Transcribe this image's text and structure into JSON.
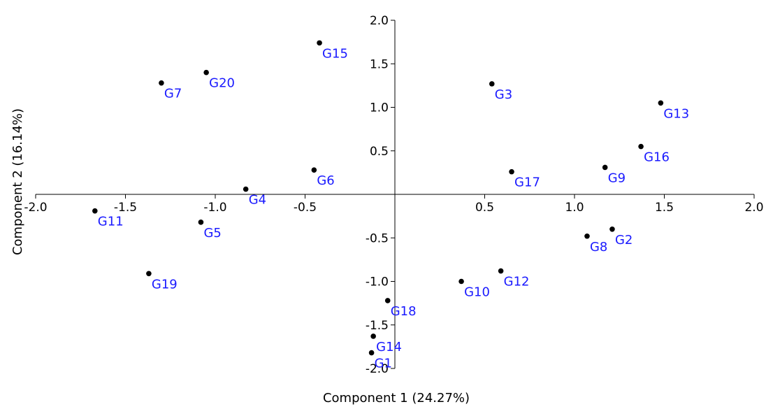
{
  "chart_data": {
    "type": "scatter",
    "xlabel": "Component 1 (24.27%)",
    "ylabel": "Component 2 (16.14%)",
    "xlim": [
      -2.0,
      2.0
    ],
    "ylim": [
      -2.0,
      2.0
    ],
    "x_ticks": [
      "-2.0",
      "-1.5",
      "-1.0",
      "-0.5",
      "0.5",
      "1.0",
      "1.5",
      "2.0"
    ],
    "y_ticks": [
      "2.0",
      "1.5",
      "1.0",
      "0.5",
      "-0.5",
      "-1.0",
      "-1.5",
      "-2.0"
    ],
    "point_color": "#000000",
    "label_color": "#1a1aff",
    "grid": false,
    "points": [
      {
        "label": "G1",
        "x": -0.13,
        "y": -1.82
      },
      {
        "label": "G2",
        "x": 1.21,
        "y": -0.4
      },
      {
        "label": "G3",
        "x": 0.54,
        "y": 1.27
      },
      {
        "label": "G4",
        "x": -0.83,
        "y": 0.06
      },
      {
        "label": "G5",
        "x": -1.08,
        "y": -0.32
      },
      {
        "label": "G6",
        "x": -0.45,
        "y": 0.28
      },
      {
        "label": "G7",
        "x": -1.3,
        "y": 1.28
      },
      {
        "label": "G8",
        "x": 1.07,
        "y": -0.48
      },
      {
        "label": "G9",
        "x": 1.17,
        "y": 0.31
      },
      {
        "label": "G10",
        "x": 0.37,
        "y": -1.0
      },
      {
        "label": "G11",
        "x": -1.67,
        "y": -0.19
      },
      {
        "label": "G12",
        "x": 0.59,
        "y": -0.88
      },
      {
        "label": "G13",
        "x": 1.48,
        "y": 1.05
      },
      {
        "label": "G14",
        "x": -0.12,
        "y": -1.63
      },
      {
        "label": "G15",
        "x": -0.42,
        "y": 1.74
      },
      {
        "label": "G16",
        "x": 1.37,
        "y": 0.55
      },
      {
        "label": "G17",
        "x": 0.65,
        "y": 0.26
      },
      {
        "label": "G18",
        "x": -0.04,
        "y": -1.22
      },
      {
        "label": "G19",
        "x": -1.37,
        "y": -0.91
      },
      {
        "label": "G20",
        "x": -1.05,
        "y": 1.4
      }
    ]
  }
}
